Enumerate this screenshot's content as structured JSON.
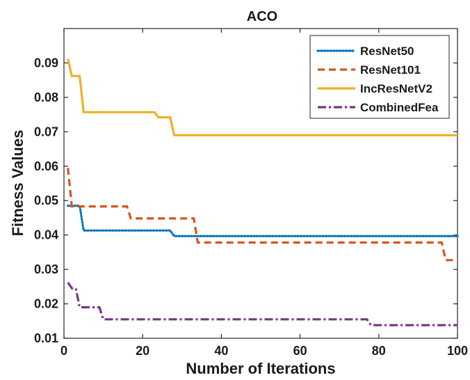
{
  "chart_data": {
    "type": "line",
    "title": "ACO",
    "xlabel": "Number of Iterations",
    "ylabel": "Fitness Values",
    "xlim": [
      0,
      100
    ],
    "ylim": [
      0.01,
      0.1
    ],
    "xticks": [
      0,
      20,
      40,
      60,
      80,
      100
    ],
    "xtick_labels": [
      "0",
      "20",
      "40",
      "60",
      "80",
      "100"
    ],
    "yticks": [
      0.01,
      0.02,
      0.03,
      0.04,
      0.05,
      0.06,
      0.07,
      0.08,
      0.09
    ],
    "ytick_labels": [
      "0.01",
      "0.02",
      "0.03",
      "0.04",
      "0.05",
      "0.06",
      "0.07",
      "0.08",
      "0.09"
    ],
    "grid": false,
    "legend_position": "top-right",
    "series": [
      {
        "name": "ResNet50",
        "color": "#0072BD",
        "style": "dotted",
        "x": [
          1,
          4,
          5,
          27,
          28,
          100
        ],
        "y": [
          0.0485,
          0.0485,
          0.0413,
          0.0413,
          0.0397,
          0.0397
        ]
      },
      {
        "name": "ResNet101",
        "color": "#D95319",
        "style": "dashed",
        "x": [
          1,
          2,
          16,
          17,
          33,
          34,
          96,
          97,
          100
        ],
        "y": [
          0.0595,
          0.0483,
          0.0483,
          0.0448,
          0.0448,
          0.0378,
          0.0378,
          0.0327,
          0.0327
        ]
      },
      {
        "name": "IncResNetV2",
        "color": "#EDB120",
        "style": "solid",
        "x": [
          1,
          2,
          4,
          5,
          23,
          24,
          27,
          28,
          100
        ],
        "y": [
          0.0912,
          0.0862,
          0.0862,
          0.0757,
          0.0757,
          0.0742,
          0.0742,
          0.069,
          0.069
        ]
      },
      {
        "name": "CombinedFea",
        "color": "#7E2F8E",
        "style": "dashdot",
        "x": [
          1,
          2,
          3,
          4,
          9,
          10,
          77,
          78,
          100
        ],
        "y": [
          0.0262,
          0.0245,
          0.0245,
          0.019,
          0.019,
          0.0155,
          0.0155,
          0.0138,
          0.0138
        ]
      }
    ]
  }
}
